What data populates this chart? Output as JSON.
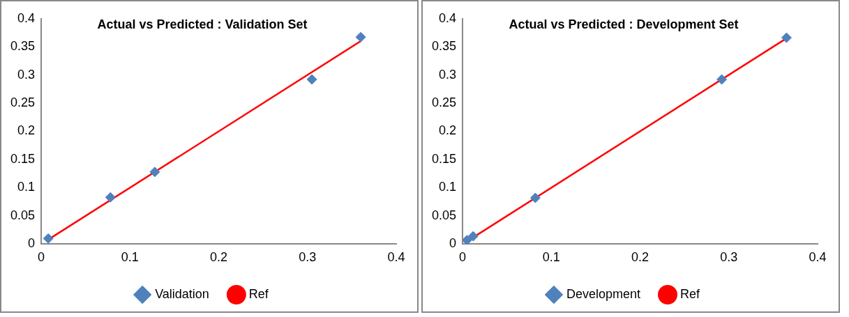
{
  "chart_data": [
    {
      "type": "scatter",
      "title": "Actual vs Predicted : Validation Set",
      "x": [
        0.008,
        0.078,
        0.128,
        0.305,
        0.36
      ],
      "series": [
        {
          "name": "Validation",
          "color": "#4f81bd",
          "marker": "diamond",
          "values": [
            0.01,
            0.083,
            0.128,
            0.292,
            0.367
          ]
        },
        {
          "name": "Ref",
          "type": "line",
          "color": "#ff0000",
          "marker": "none",
          "x": [
            0.008,
            0.36
          ],
          "values": [
            0.008,
            0.36
          ]
        }
      ],
      "xlim": [
        0,
        0.4
      ],
      "xticks": [
        0,
        0.1,
        0.2,
        0.3,
        0.4
      ],
      "ylim": [
        0,
        0.4
      ],
      "yticks": [
        0,
        0.05,
        0.1,
        0.15,
        0.2,
        0.25,
        0.3,
        0.35,
        0.4
      ],
      "grid": false,
      "legend": "bottom"
    },
    {
      "type": "scatter",
      "title": "Actual vs Predicted : Development Set",
      "x": [
        0.005,
        0.012,
        0.082,
        0.292,
        0.365
      ],
      "series": [
        {
          "name": "Development",
          "color": "#4f81bd",
          "marker": "diamond",
          "values": [
            0.007,
            0.014,
            0.082,
            0.292,
            0.366
          ]
        },
        {
          "name": "Ref",
          "type": "line",
          "color": "#ff0000",
          "marker": "none",
          "x": [
            0.005,
            0.366
          ],
          "values": [
            0.005,
            0.366
          ]
        }
      ],
      "xlim": [
        0,
        0.4
      ],
      "xticks": [
        0,
        0.1,
        0.2,
        0.3,
        0.4
      ],
      "ylim": [
        0,
        0.4
      ],
      "yticks": [
        0,
        0.05,
        0.1,
        0.15,
        0.2,
        0.25,
        0.3,
        0.35,
        0.4
      ],
      "grid": false,
      "legend": "bottom"
    }
  ]
}
